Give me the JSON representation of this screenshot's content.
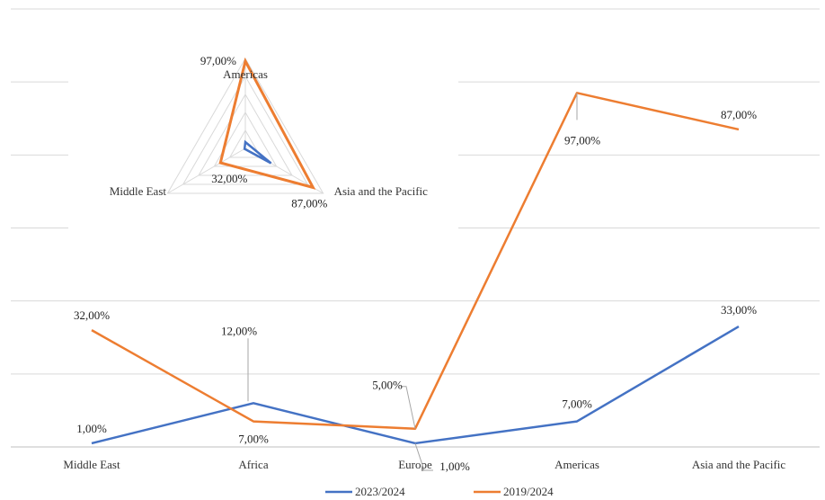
{
  "chart_data": [
    {
      "type": "line",
      "title": "",
      "xlabel": "",
      "ylabel": "",
      "categories": [
        "Middle East",
        "Africa",
        "Europe",
        "Americas",
        "Asia and the Pacific"
      ],
      "ylim": [
        0,
        120
      ],
      "y_axis_labels_shown": false,
      "grid": "horizontal",
      "legend_position": "bottom",
      "series": [
        {
          "name": "2023/2024",
          "color": "#4472c4",
          "values": [
            1,
            12,
            1,
            7,
            33
          ],
          "labels": [
            "1,00%",
            "12,00%",
            "1,00%",
            "7,00%",
            "33,00%"
          ]
        },
        {
          "name": "2019/2024",
          "color": "#ed7d31",
          "values": [
            32,
            7,
            5,
            97,
            87
          ],
          "labels": [
            "32,00%",
            "7,00%",
            "5,00%",
            "97,00%",
            "87,00%"
          ]
        }
      ]
    },
    {
      "type": "radar",
      "title": "",
      "axes": [
        "Americas",
        "Asia and the Pacific",
        "Middle East"
      ],
      "rmax": 100,
      "rings": 5,
      "series": [
        {
          "name": "2019/2024",
          "color": "#ed7d31",
          "values": [
            97,
            87,
            32
          ],
          "labels": [
            "97,00%",
            "87,00%",
            "32,00%"
          ]
        },
        {
          "name": "2023/2024",
          "color": "#4472c4",
          "values": [
            7,
            33,
            1
          ],
          "labels": []
        }
      ]
    }
  ]
}
